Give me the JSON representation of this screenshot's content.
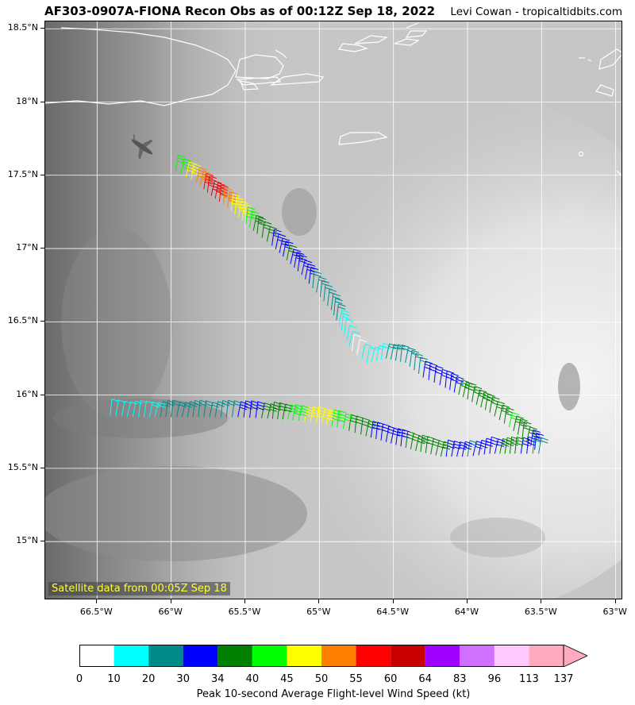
{
  "header": {
    "title": "AF303-0907A-FIONA Recon Obs as of 00:12Z Sep 18, 2022",
    "credit": "Levi Cowan - tropicaltidbits.com"
  },
  "map": {
    "satellite_label": "Satellite data from 00:05Z Sep 18",
    "lon_range": [
      -66.85,
      -62.95
    ],
    "lat_range": [
      14.6,
      18.55
    ],
    "lat_ticks": [
      {
        "value": 18.5,
        "label": "18.5°N"
      },
      {
        "value": 18.0,
        "label": "18°N"
      },
      {
        "value": 17.5,
        "label": "17.5°N"
      },
      {
        "value": 17.0,
        "label": "17°N"
      },
      {
        "value": 16.5,
        "label": "16.5°N"
      },
      {
        "value": 16.0,
        "label": "16°N"
      },
      {
        "value": 15.5,
        "label": "15.5°N"
      },
      {
        "value": 15.0,
        "label": "15°N"
      }
    ],
    "lon_ticks": [
      {
        "value": -66.5,
        "label": "66.5°W"
      },
      {
        "value": -66.0,
        "label": "66°W"
      },
      {
        "value": -65.5,
        "label": "65.5°W"
      },
      {
        "value": -65.0,
        "label": "65°W"
      },
      {
        "value": -64.5,
        "label": "64.5°W"
      },
      {
        "value": -64.0,
        "label": "64°W"
      },
      {
        "value": -63.5,
        "label": "63.5°W"
      },
      {
        "value": -63.0,
        "label": "63°W"
      }
    ],
    "flight_track": [
      {
        "lon": -65.97,
        "lat": 17.53,
        "kt": 40
      },
      {
        "lon": -65.83,
        "lat": 17.45,
        "kt": 50
      },
      {
        "lon": -65.73,
        "lat": 17.36,
        "kt": 60
      },
      {
        "lon": -65.62,
        "lat": 17.28,
        "kt": 50
      },
      {
        "lon": -65.52,
        "lat": 17.19,
        "kt": 45
      },
      {
        "lon": -65.42,
        "lat": 17.1,
        "kt": 38
      },
      {
        "lon": -65.32,
        "lat": 17.02,
        "kt": 32
      },
      {
        "lon": -65.22,
        "lat": 16.92,
        "kt": 34
      },
      {
        "lon": -65.12,
        "lat": 16.82,
        "kt": 33
      },
      {
        "lon": -65.02,
        "lat": 16.7,
        "kt": 28
      },
      {
        "lon": -64.92,
        "lat": 16.58,
        "kt": 25
      },
      {
        "lon": -64.85,
        "lat": 16.44,
        "kt": 18
      },
      {
        "lon": -64.78,
        "lat": 16.3,
        "kt": 8
      },
      {
        "lon": -64.68,
        "lat": 16.22,
        "kt": 12
      },
      {
        "lon": -64.55,
        "lat": 16.25,
        "kt": 22
      },
      {
        "lon": -64.42,
        "lat": 16.22,
        "kt": 27
      },
      {
        "lon": -64.3,
        "lat": 16.12,
        "kt": 30
      },
      {
        "lon": -64.15,
        "lat": 16.05,
        "kt": 32
      },
      {
        "lon": -64.0,
        "lat": 15.97,
        "kt": 36
      },
      {
        "lon": -63.85,
        "lat": 15.88,
        "kt": 37
      },
      {
        "lon": -63.72,
        "lat": 15.78,
        "kt": 40
      },
      {
        "lon": -63.6,
        "lat": 15.68,
        "kt": 36
      },
      {
        "lon": -63.52,
        "lat": 15.6,
        "kt": 27
      },
      {
        "lon": -63.68,
        "lat": 15.6,
        "kt": 36
      },
      {
        "lon": -63.85,
        "lat": 15.6,
        "kt": 33
      },
      {
        "lon": -64.0,
        "lat": 15.58,
        "kt": 29
      },
      {
        "lon": -64.18,
        "lat": 15.58,
        "kt": 35
      },
      {
        "lon": -64.35,
        "lat": 15.62,
        "kt": 37
      },
      {
        "lon": -64.55,
        "lat": 15.68,
        "kt": 30
      },
      {
        "lon": -64.72,
        "lat": 15.73,
        "kt": 36
      },
      {
        "lon": -64.88,
        "lat": 15.78,
        "kt": 42
      },
      {
        "lon": -65.02,
        "lat": 15.81,
        "kt": 48
      },
      {
        "lon": -65.18,
        "lat": 15.83,
        "kt": 42
      },
      {
        "lon": -65.35,
        "lat": 15.84,
        "kt": 36
      },
      {
        "lon": -65.55,
        "lat": 15.85,
        "kt": 30
      },
      {
        "lon": -65.78,
        "lat": 15.85,
        "kt": 26
      },
      {
        "lon": -66.0,
        "lat": 15.85,
        "kt": 22
      },
      {
        "lon": -66.22,
        "lat": 15.85,
        "kt": 17
      },
      {
        "lon": -66.45,
        "lat": 15.86,
        "kt": 14
      }
    ]
  },
  "colorbar": {
    "title": "Peak 10-second Average Flight-level Wind Speed (kt)",
    "bins": [
      {
        "from": "0",
        "to": "10",
        "color": "#ffffff"
      },
      {
        "from": "10",
        "to": "20",
        "color": "#00ffff"
      },
      {
        "from": "20",
        "to": "30",
        "color": "#008b8b"
      },
      {
        "from": "30",
        "to": "34",
        "color": "#0000ff"
      },
      {
        "from": "34",
        "to": "40",
        "color": "#008000"
      },
      {
        "from": "40",
        "to": "45",
        "color": "#00ff00"
      },
      {
        "from": "45",
        "to": "50",
        "color": "#ffff00"
      },
      {
        "from": "50",
        "to": "55",
        "color": "#ff8000"
      },
      {
        "from": "55",
        "to": "60",
        "color": "#ff0000"
      },
      {
        "from": "60",
        "to": "64",
        "color": "#c80000"
      },
      {
        "from": "64",
        "to": "83",
        "color": "#a000ff"
      },
      {
        "from": "83",
        "to": "96",
        "color": "#d070ff"
      },
      {
        "from": "96",
        "to": "113",
        "color": "#ffc8ff"
      },
      {
        "from": "113",
        "to": "137",
        "color": "#ffaabf"
      }
    ],
    "labels": [
      "0",
      "10",
      "20",
      "30",
      "34",
      "40",
      "45",
      "50",
      "55",
      "60",
      "64",
      "83",
      "96",
      "113",
      "137"
    ]
  }
}
